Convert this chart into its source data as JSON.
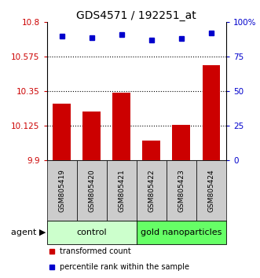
{
  "title": "GDS4571 / 192251_at",
  "categories": [
    "GSM805419",
    "GSM805420",
    "GSM805421",
    "GSM805422",
    "GSM805423",
    "GSM805424"
  ],
  "bar_values": [
    10.27,
    10.22,
    10.34,
    10.03,
    10.13,
    10.52
  ],
  "blue_values": [
    90,
    89,
    91,
    87,
    88,
    92
  ],
  "ylim_left": [
    9.9,
    10.8
  ],
  "yticks_left": [
    9.9,
    10.125,
    10.35,
    10.575,
    10.8
  ],
  "ylim_right": [
    0,
    100
  ],
  "yticks_right": [
    0,
    25,
    50,
    75,
    100
  ],
  "ytick_labels_right": [
    "0",
    "25",
    "50",
    "75",
    "100%"
  ],
  "hlines": [
    10.125,
    10.35,
    10.575
  ],
  "bar_color": "#cc0000",
  "blue_color": "#0000cc",
  "bar_width": 0.6,
  "group1_label": "control",
  "group2_label": "gold nanoparticles",
  "group1_color": "#ccffcc",
  "group2_color": "#66ff66",
  "agent_label": "agent",
  "xticklabel_box_color": "#cccccc",
  "legend_bar_label": "transformed count",
  "legend_blue_label": "percentile rank within the sample",
  "title_fontsize": 10,
  "tick_fontsize": 7.5,
  "label_fontsize": 8
}
